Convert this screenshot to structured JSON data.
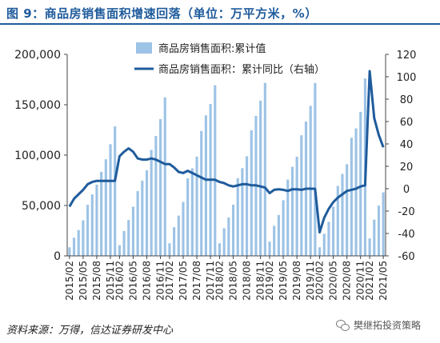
{
  "figure": {
    "title": "图 9：商品房销售面积增速回落（单位：万平方米，%）",
    "source": "资料来源：万得，信达证券研发中心",
    "watermark": "樊继拓投资策略"
  },
  "icons": {
    "watermark": "wechat-icon"
  },
  "colors": {
    "bars": "#9dc3e6",
    "line": "#1f5b9c",
    "title": "#1f5b9c"
  },
  "chart_data": {
    "type": "bar+line",
    "title": "",
    "categories": [
      "2015/02",
      "2015/03",
      "2015/04",
      "2015/05",
      "2015/06",
      "2015/07",
      "2015/08",
      "2015/09",
      "2015/10",
      "2015/11",
      "2015/12",
      "2016/02",
      "2016/03",
      "2016/04",
      "2016/05",
      "2016/06",
      "2016/07",
      "2016/08",
      "2016/09",
      "2016/10",
      "2016/11",
      "2016/12",
      "2017/02",
      "2017/03",
      "2017/04",
      "2017/05",
      "2017/06",
      "2017/07",
      "2017/08",
      "2017/09",
      "2017/10",
      "2017/11",
      "2017/12",
      "2018/02",
      "2018/03",
      "2018/04",
      "2018/05",
      "2018/06",
      "2018/07",
      "2018/08",
      "2018/09",
      "2018/10",
      "2018/11",
      "2018/12",
      "2019/02",
      "2019/03",
      "2019/04",
      "2019/05",
      "2019/06",
      "2019/07",
      "2019/08",
      "2019/09",
      "2019/10",
      "2019/11",
      "2019/12",
      "2020/02",
      "2020/03",
      "2020/04",
      "2020/05",
      "2020/06",
      "2020/07",
      "2020/08",
      "2020/09",
      "2020/10",
      "2020/11",
      "2020/12",
      "2021/02",
      "2021/03",
      "2021/04",
      "2021/05"
    ],
    "x_tick_labels": [
      "2015/02",
      "2015/05",
      "2015/08",
      "2015/11",
      "2016/02",
      "2016/05",
      "2016/08",
      "2016/11",
      "2017/02",
      "2017/05",
      "2017/08",
      "2017/11",
      "2018/02",
      "2018/05",
      "2018/08",
      "2018/11",
      "2019/02",
      "2019/05",
      "2019/08",
      "2019/11",
      "2020/02",
      "2020/05",
      "2020/08",
      "2020/11",
      "2021/02",
      "2021/05"
    ],
    "series": [
      {
        "name": "商品房销售面积:累计值",
        "type": "bar",
        "axis": "left",
        "values": [
          8500,
          18000,
          25600,
          35300,
          50700,
          61000,
          70700,
          83400,
          95900,
          110800,
          128500,
          10600,
          24700,
          35600,
          48800,
          64300,
          74700,
          85000,
          105200,
          119000,
          135700,
          157300,
          12500,
          28500,
          40000,
          53600,
          77000,
          86900,
          98500,
          124000,
          139500,
          150700,
          169400,
          12500,
          27400,
          38100,
          50800,
          77100,
          87000,
          98900,
          124600,
          139000,
          154000,
          171700,
          14100,
          29800,
          40600,
          55200,
          75700,
          88400,
          98500,
          119700,
          133300,
          148900,
          171600,
          8500,
          21900,
          33800,
          48900,
          69400,
          81300,
          91000,
          117200,
          126500,
          143000,
          176000,
          17400,
          36000,
          49900,
          63000
        ],
        "color": "#9dc3e6"
      },
      {
        "name": "商品房销售面积：累计同比（右轴）",
        "type": "line",
        "axis": "right",
        "values": [
          -16,
          -9,
          -5,
          -1,
          4,
          6,
          7,
          7,
          7,
          7,
          7,
          29,
          33,
          36,
          33,
          27,
          26,
          26,
          27,
          26,
          24,
          22,
          22,
          19,
          15,
          14,
          16,
          14,
          12,
          10,
          8,
          8,
          8,
          6,
          5,
          3,
          2,
          3,
          4,
          4,
          3,
          3,
          2,
          1,
          -4,
          -1,
          -0.5,
          -1,
          -2,
          -0.5,
          -0.5,
          -1,
          0,
          0,
          -0.1,
          -39,
          -26,
          -18,
          -12,
          -8,
          -5,
          -2,
          -1,
          0,
          2,
          3,
          105,
          63,
          48,
          37
        ],
        "color": "#1f5b9c"
      }
    ],
    "y_left": {
      "min": 0,
      "max": 200000,
      "ticks": [
        0,
        50000,
        100000,
        150000,
        200000
      ],
      "tick_labels": [
        "0",
        "50,000",
        "100,000",
        "150,000",
        "200,000"
      ]
    },
    "y_right": {
      "min": -60,
      "max": 120,
      "ticks": [
        -60,
        -40,
        -20,
        0,
        20,
        40,
        60,
        80,
        100,
        120
      ],
      "tick_labels": [
        "-60",
        "-40",
        "-20",
        "0",
        "20",
        "40",
        "60",
        "80",
        "100",
        "120"
      ]
    },
    "xlabel": "",
    "ylabel": "",
    "legend_position": "top-center",
    "grid": false
  }
}
